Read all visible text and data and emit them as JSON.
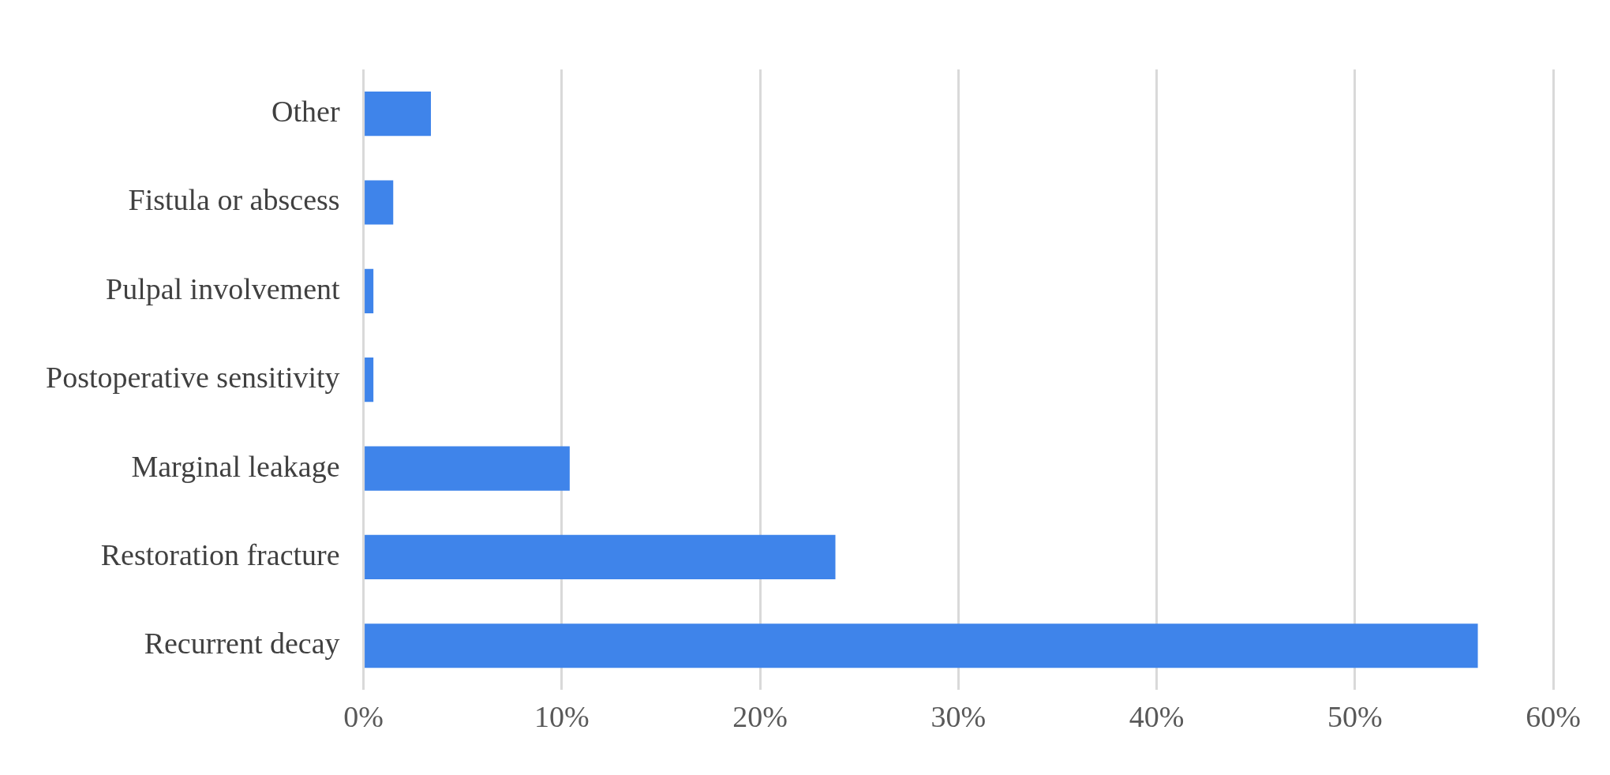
{
  "chart_data": {
    "type": "bar",
    "orientation": "horizontal",
    "categories": [
      "Other",
      "Fistula or abscess",
      "Pulpal involvement",
      "Postoperative sensitivity",
      "Marginal leakage",
      "Restoration fracture",
      "Recurrent decay"
    ],
    "values": [
      3.4,
      1.5,
      0.5,
      0.5,
      10.4,
      23.8,
      56.2
    ],
    "color": "#3f84ea",
    "xlim": [
      0,
      60
    ],
    "xticks": [
      {
        "value": 0,
        "label": "0%"
      },
      {
        "value": 10,
        "label": "10%"
      },
      {
        "value": 20,
        "label": "20%"
      },
      {
        "value": 30,
        "label": "30%"
      },
      {
        "value": 40,
        "label": "40%"
      },
      {
        "value": 50,
        "label": "50%"
      },
      {
        "value": 60,
        "label": "60%"
      }
    ],
    "grid": "x",
    "legend": false
  }
}
